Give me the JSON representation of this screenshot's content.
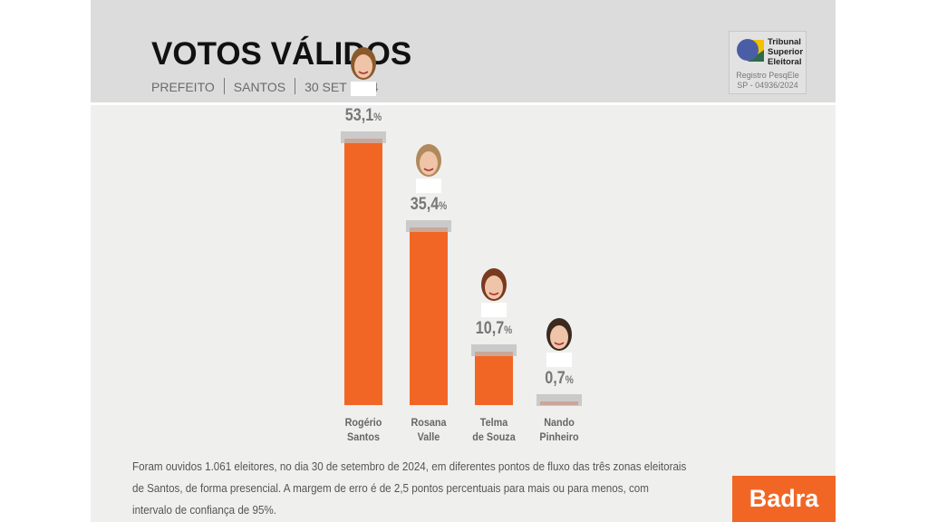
{
  "header": {
    "title": "VOTOS VÁLIDOS",
    "subtitle": [
      "PREFEITO",
      "SANTOS",
      "30 SET 2024"
    ]
  },
  "tse": {
    "name_lines": [
      "Tribunal",
      "Superior",
      "Eleitoral"
    ],
    "registry_line1": "Registro PesqEle",
    "registry_line2": "SP - 04936/2024"
  },
  "chart_data": {
    "type": "bar",
    "title": "VOTOS VÁLIDOS",
    "categories": [
      "Rogério Santos",
      "Rosana Valle",
      "Telma de Souza",
      "Nando Pinheiro"
    ],
    "category_lines": [
      [
        "Rogério",
        "Santos"
      ],
      [
        "Rosana",
        "Valle"
      ],
      [
        "Telma",
        "de Souza"
      ],
      [
        "Nando",
        "Pinheiro"
      ]
    ],
    "values": [
      53.1,
      35.4,
      10.7,
      0.7
    ],
    "labels": [
      "53,1",
      "35,4",
      "10,7",
      "0,7"
    ],
    "unit": "%",
    "margin_of_error": 2.5,
    "bar_color": "#f26625",
    "error_band_color": "#c4c4c4"
  },
  "footer": {
    "note": "Foram ouvidos 1.061 eleitores, no dia 30 de setembro de 2024, em diferentes pontos de fluxo das três zonas eleitorais de Santos, de forma presencial. A margem de erro é de 2,5 pontos percentuais para mais ou para menos, com intervalo de confiança de 95%.",
    "brand": "Badra",
    "brand_color": "#f26625"
  }
}
